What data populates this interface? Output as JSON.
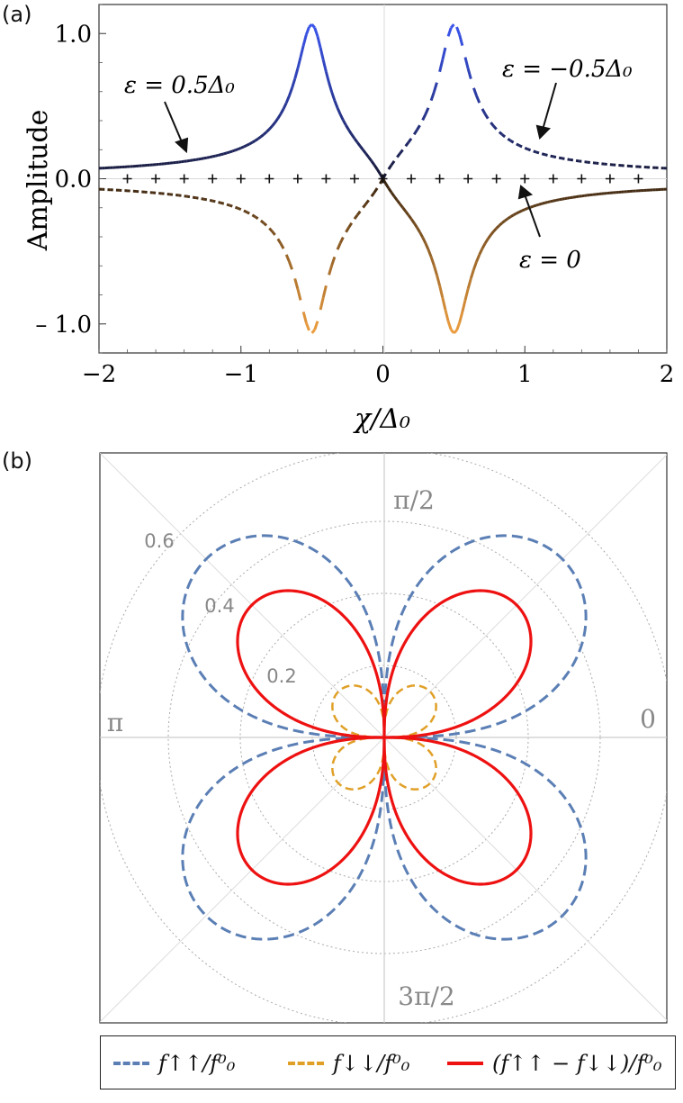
{
  "panels": {
    "a_label": "(a)",
    "b_label": "(b)"
  },
  "chart_data": [
    {
      "type": "line",
      "panel": "(a)",
      "xlabel": "χ/Δ₀",
      "ylabel": "Amplitude",
      "xlim": [
        -2,
        2
      ],
      "ylim": [
        -1.2,
        1.2
      ],
      "xticks": [
        "−2",
        "−1",
        "0",
        "1",
        "2"
      ],
      "yticks": [
        "1.0",
        "0.0",
        "– 1.0"
      ],
      "grid": false,
      "annotations": [
        {
          "text": "ε = 0.5Δ₀",
          "points_to": "solid curve at χ/Δ₀ ≈ −1.4"
        },
        {
          "text": "ε = −0.5Δ₀",
          "points_to": "dashed curve at χ/Δ₀ ≈ 1.1"
        },
        {
          "text": "ε = 0",
          "points_to": "zero line at χ/Δ₀ ≈ 0.9"
        }
      ],
      "series": [
        {
          "style": "solid",
          "color_gradient": [
            "#111122",
            "#3a55e8"
          ],
          "peak_x": -0.5,
          "peak_y": 1.08,
          "x": [
            -2,
            -1.5,
            -1,
            -0.75,
            -0.5,
            -0.25,
            0,
            0.25,
            0.5,
            0.75,
            1,
            1.5,
            2
          ],
          "y": [
            0.09,
            0.15,
            0.3,
            0.52,
            1.08,
            0.52,
            0.0,
            -0.52,
            -1.08,
            -0.52,
            -0.3,
            -0.15,
            -0.09
          ]
        },
        {
          "style": "dashed",
          "color_gradient": [
            "#111122",
            "#3a55e8"
          ],
          "peak_x": 0.5,
          "peak_y": 1.08,
          "x": [
            -2,
            -1.5,
            -1,
            -0.75,
            -0.5,
            -0.25,
            0,
            0.25,
            0.5,
            0.75,
            1,
            1.5,
            2
          ],
          "y": [
            -0.09,
            -0.15,
            -0.3,
            -0.52,
            -1.08,
            -0.52,
            0.0,
            0.52,
            1.08,
            0.52,
            0.3,
            0.15,
            0.09
          ]
        },
        {
          "style": "markers-plus",
          "color": "#111111",
          "x": [
            -1.8,
            -1.6,
            -1.4,
            -1.2,
            -1.0,
            -0.8,
            -0.6,
            -0.4,
            -0.2,
            0.0,
            0.2,
            0.4,
            0.6,
            0.8,
            1.0,
            1.2,
            1.4,
            1.6,
            1.8
          ],
          "y": [
            0,
            0,
            0,
            0,
            0,
            0,
            0,
            0,
            0,
            0,
            0,
            0,
            0,
            0,
            0,
            0,
            0,
            0,
            0
          ]
        }
      ]
    },
    {
      "type": "polar",
      "panel": "(b)",
      "radial_ticks": [
        "0.2",
        "0.4",
        "0.6"
      ],
      "angle_labels": [
        "0",
        "π/2",
        "π",
        "3π/2"
      ],
      "rmax": 0.8,
      "grid": true,
      "legend_placement": "bottom",
      "series": [
        {
          "name": "f↑↑/f⁰₀",
          "style": "dashed",
          "color": "#5b7fb5",
          "r_peak": 0.7,
          "lobes": 4
        },
        {
          "name": "f↓↓/f⁰₀",
          "style": "dashed",
          "color": "#e0a028",
          "r_peak": 0.18,
          "lobes": 4
        },
        {
          "name": "(f↑↑ − f↓↓)/f⁰₀",
          "style": "solid",
          "color": "#ee1111",
          "r_peak": 0.52,
          "lobes": 4
        }
      ]
    }
  ]
}
